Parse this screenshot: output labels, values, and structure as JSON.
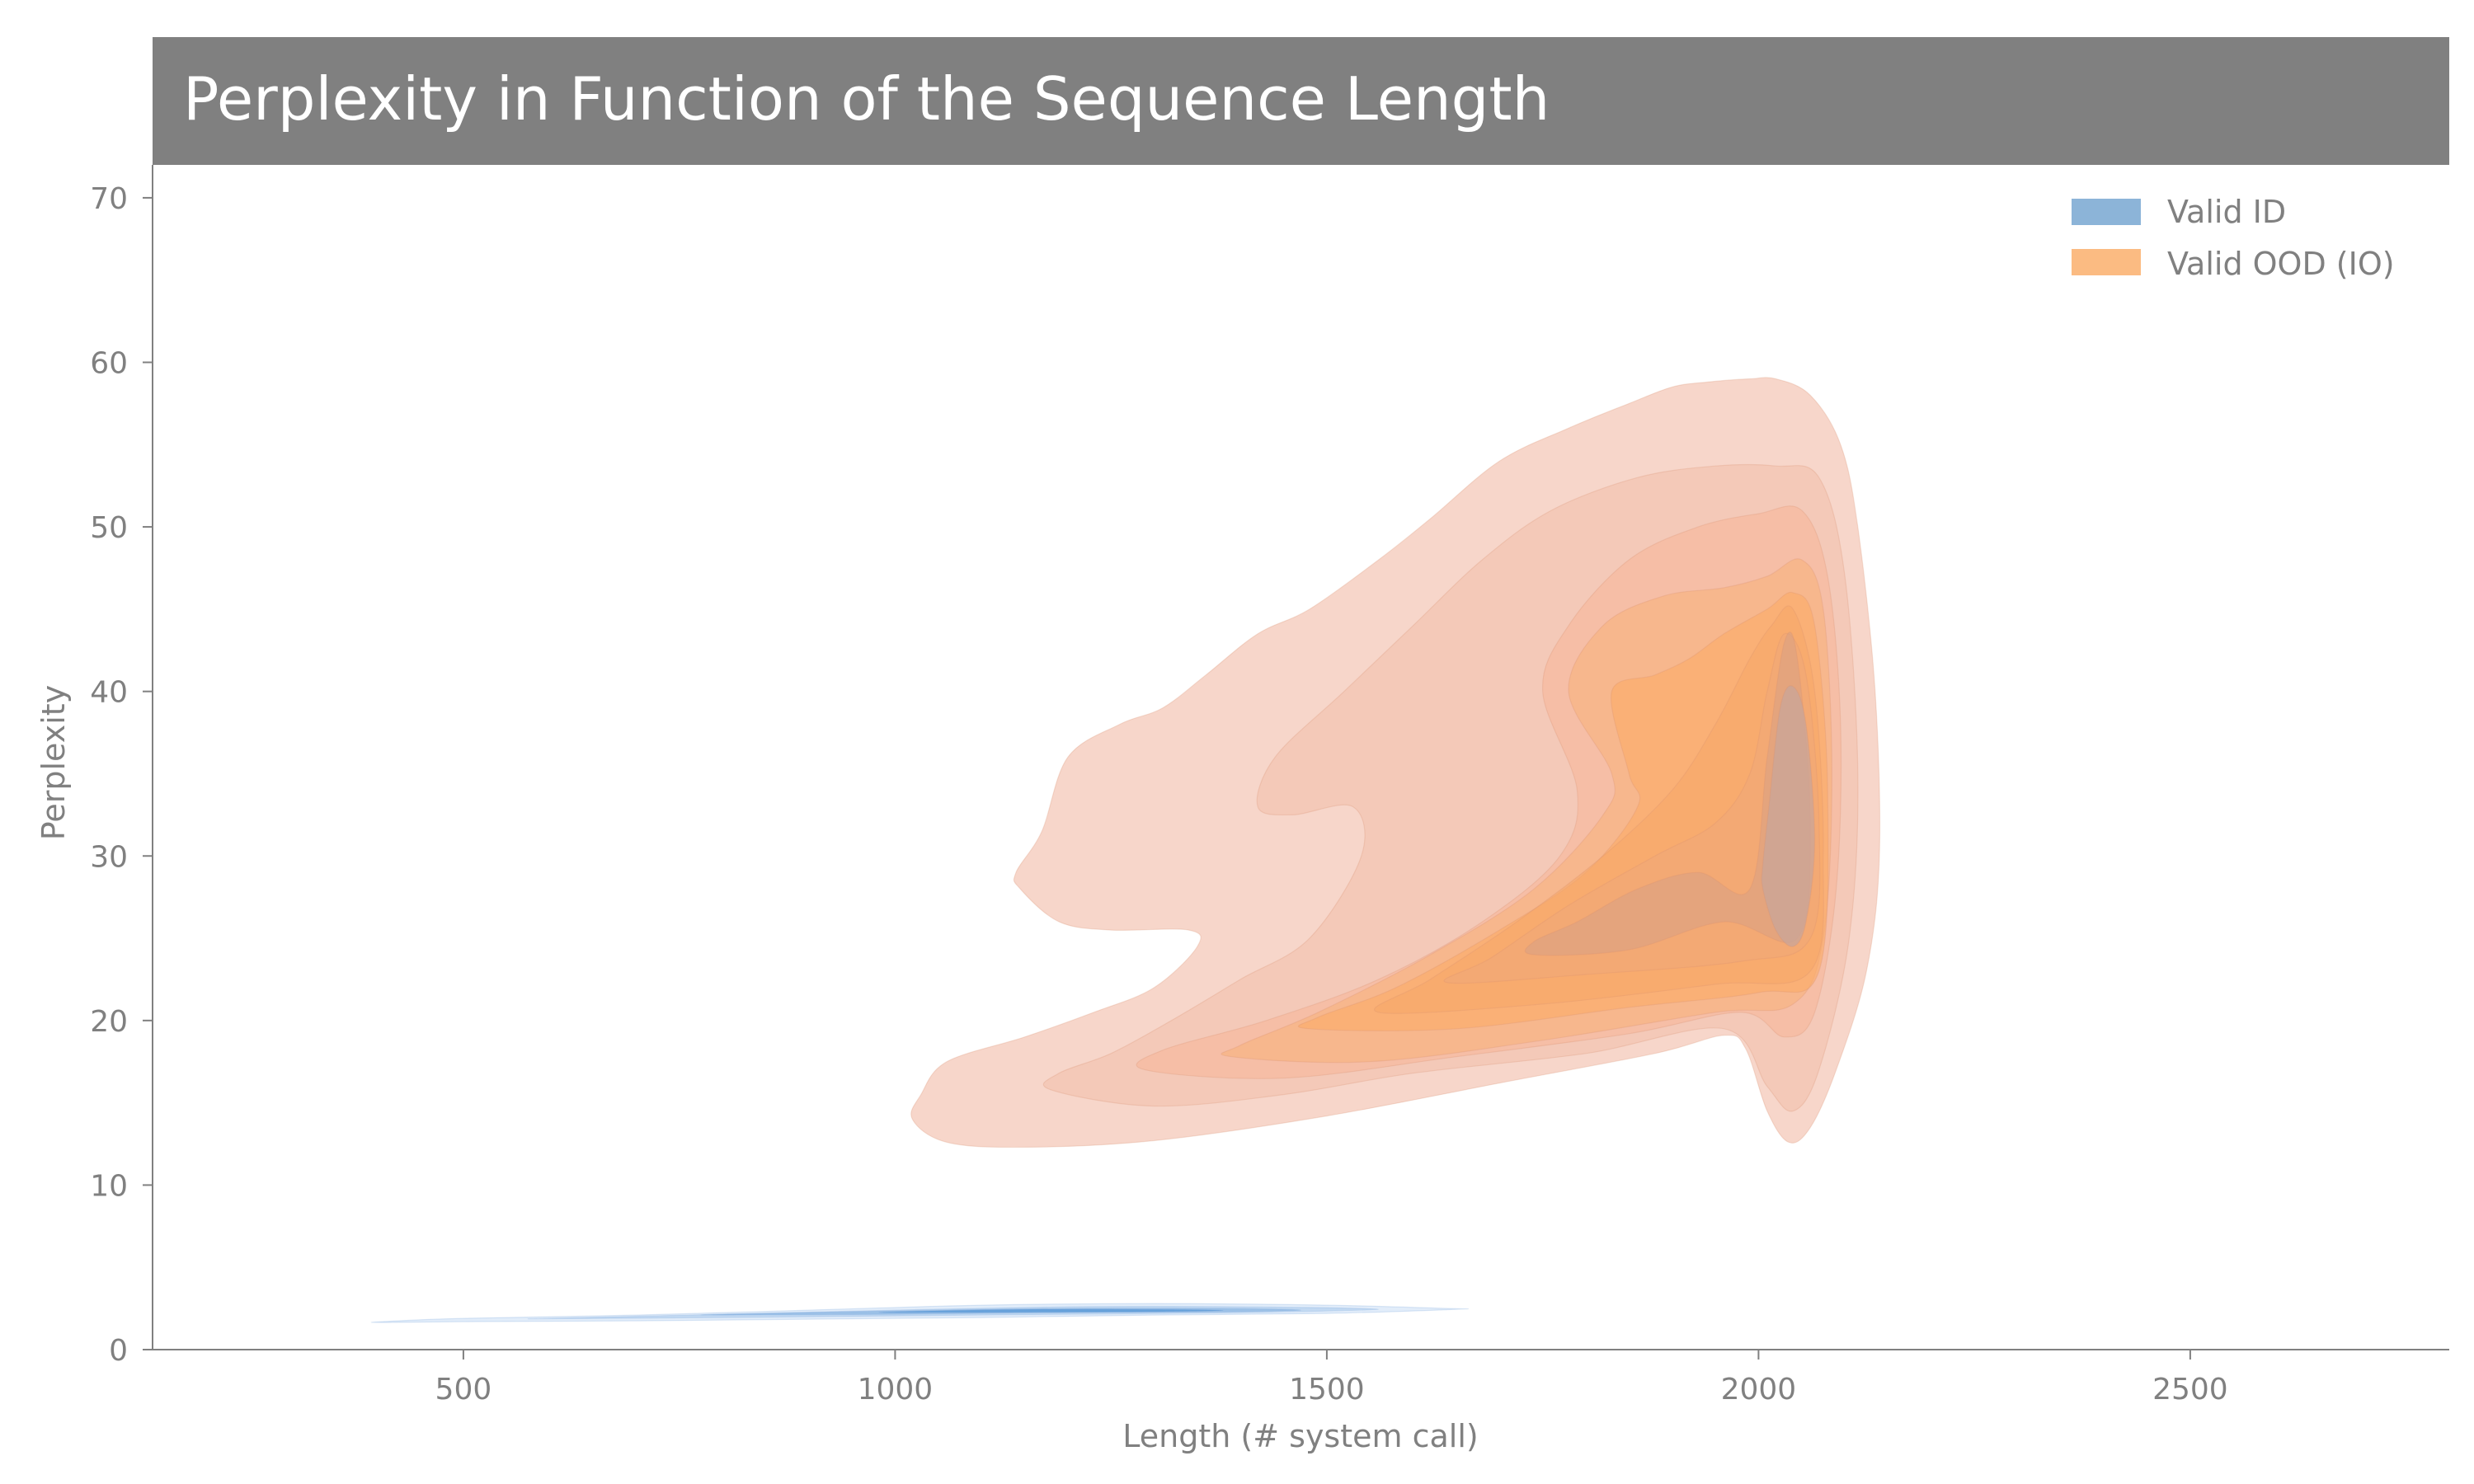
{
  "chart_data": {
    "type": "kde-contour",
    "title": "Perplexity in Function of the Sequence Length",
    "xlabel": "Length (# system call)",
    "ylabel": "Perplexity",
    "xlim": [
      140,
      2800
    ],
    "ylim": [
      0,
      72
    ],
    "xticks": [
      500,
      1000,
      1500,
      2000,
      2500
    ],
    "yticks": [
      0,
      10,
      20,
      30,
      40,
      50,
      60,
      70
    ],
    "grid": false,
    "legend_position": "top-right",
    "colors": {
      "title_band": "#808080",
      "axis": "#808080",
      "ood_outer": "#f4c4b4",
      "ood_inner": "#fbb172",
      "id_light": "#c5dcf5",
      "id_dark": "#5a9ad8",
      "legend_id": "#8cb4d8",
      "legend_ood": "#fbbb82"
    },
    "series": [
      {
        "name": "Valid ID",
        "color": "#8cb4d8",
        "levels": [
          {
            "opacity": 0.5,
            "fill": "#c5dcf5",
            "points": [
              [
                405,
                1.7
              ],
              [
                500,
                1.9
              ],
              [
                700,
                2.1
              ],
              [
                900,
                2.4
              ],
              [
                1100,
                2.7
              ],
              [
                1300,
                2.8
              ],
              [
                1500,
                2.7
              ],
              [
                1640,
                2.5
              ],
              [
                1650,
                2.45
              ],
              [
                1500,
                2.2
              ],
              [
                1300,
                2.1
              ],
              [
                1100,
                1.95
              ],
              [
                900,
                1.85
              ],
              [
                700,
                1.75
              ],
              [
                500,
                1.7
              ],
              [
                405,
                1.65
              ]
            ]
          },
          {
            "opacity": 0.6,
            "fill": "#aecbec",
            "points": [
              [
                600,
                1.9
              ],
              [
                800,
                2.15
              ],
              [
                1000,
                2.4
              ],
              [
                1200,
                2.6
              ],
              [
                1400,
                2.6
              ],
              [
                1560,
                2.45
              ],
              [
                1400,
                2.25
              ],
              [
                1200,
                2.15
              ],
              [
                1000,
                2.05
              ],
              [
                800,
                1.95
              ],
              [
                600,
                1.88
              ]
            ]
          },
          {
            "opacity": 0.7,
            "fill": "#8bb6e3",
            "points": [
              [
                800,
                2.15
              ],
              [
                1000,
                2.35
              ],
              [
                1200,
                2.5
              ],
              [
                1380,
                2.5
              ],
              [
                1470,
                2.4
              ],
              [
                1380,
                2.3
              ],
              [
                1200,
                2.25
              ],
              [
                1000,
                2.15
              ],
              [
                800,
                2.1
              ]
            ]
          },
          {
            "opacity": 0.8,
            "fill": "#5a9ad8",
            "points": [
              [
                1000,
                2.3
              ],
              [
                1150,
                2.45
              ],
              [
                1300,
                2.45
              ],
              [
                1380,
                2.38
              ],
              [
                1300,
                2.3
              ],
              [
                1150,
                2.27
              ],
              [
                1000,
                2.25
              ]
            ]
          }
        ]
      },
      {
        "name": "Valid OOD (IO)",
        "color": "#fbbb82",
        "levels": [
          {
            "opacity": 0.7,
            "fill": "#f4c4b4",
            "points": [
              [
                1020,
                14
              ],
              [
                1060,
                12.6
              ],
              [
                1150,
                12.3
              ],
              [
                1300,
                12.7
              ],
              [
                1500,
                14.2
              ],
              [
                1700,
                16.2
              ],
              [
                1880,
                18
              ],
              [
                1960,
                19.1
              ],
              [
                1985,
                18.3
              ],
              [
                2010,
                14.5
              ],
              [
                2035,
                12.6
              ],
              [
                2060,
                13.5
              ],
              [
                2090,
                17
              ],
              [
                2125,
                23
              ],
              [
                2140,
                30
              ],
              [
                2135,
                40
              ],
              [
                2115,
                50
              ],
              [
                2095,
                55
              ],
              [
                2060,
                58
              ],
              [
                2020,
                59
              ],
              [
                1990,
                59
              ],
              [
                1940,
                58.8
              ],
              [
                1900,
                58.5
              ],
              [
                1850,
                57.5
              ],
              [
                1780,
                56
              ],
              [
                1700,
                54
              ],
              [
                1620,
                50.5
              ],
              [
                1560,
                48
              ],
              [
                1480,
                45
              ],
              [
                1420,
                43.5
              ],
              [
                1360,
                41
              ],
              [
                1310,
                39
              ],
              [
                1260,
                38
              ],
              [
                1200,
                36
              ],
              [
                1170,
                31.5
              ],
              [
                1140,
                29
              ],
              [
                1145,
                28
              ],
              [
                1190,
                26
              ],
              [
                1250,
                25.5
              ],
              [
                1340,
                25.5
              ],
              [
                1350,
                24.5
              ],
              [
                1300,
                22
              ],
              [
                1230,
                20.5
              ],
              [
                1150,
                19
              ],
              [
                1060,
                17.5
              ],
              [
                1030,
                15.5
              ]
            ]
          },
          {
            "opacity": 0.55,
            "fill": "#f2bfaa",
            "points": [
              [
                1180,
                15.8
              ],
              [
                1300,
                14.8
              ],
              [
                1450,
                15.5
              ],
              [
                1600,
                16.8
              ],
              [
                1800,
                18
              ],
              [
                1960,
                19.5
              ],
              [
                2010,
                16
              ],
              [
                2040,
                14.5
              ],
              [
                2070,
                17
              ],
              [
                2105,
                25
              ],
              [
                2115,
                35
              ],
              [
                2100,
                47
              ],
              [
                2070,
                53
              ],
              [
                2020,
                53.7
              ],
              [
                1950,
                53.7
              ],
              [
                1860,
                53
              ],
              [
                1760,
                51
              ],
              [
                1680,
                48
              ],
              [
                1600,
                44
              ],
              [
                1520,
                40
              ],
              [
                1440,
                36
              ],
              [
                1420,
                33
              ],
              [
                1460,
                32.5
              ],
              [
                1530,
                33
              ],
              [
                1540,
                30
              ],
              [
                1480,
                25
              ],
              [
                1400,
                22.5
              ],
              [
                1320,
                20
              ],
              [
                1250,
                18
              ],
              [
                1190,
                16.8
              ]
            ]
          },
          {
            "opacity": 0.6,
            "fill": "#f6b89a",
            "points": [
              [
                1290,
                17
              ],
              [
                1450,
                16.5
              ],
              [
                1650,
                17.8
              ],
              [
                1850,
                19.2
              ],
              [
                1980,
                20.5
              ],
              [
                2030,
                19
              ],
              [
                2065,
                20.5
              ],
              [
                2090,
                28
              ],
              [
                2095,
                38
              ],
              [
                2080,
                47
              ],
              [
                2050,
                51
              ],
              [
                2000,
                50.8
              ],
              [
                1930,
                50
              ],
              [
                1850,
                48
              ],
              [
                1780,
                44
              ],
              [
                1750,
                40
              ],
              [
                1790,
                34
              ],
              [
                1770,
                30
              ],
              [
                1680,
                26
              ],
              [
                1560,
                22.5
              ],
              [
                1430,
                20
              ],
              [
                1310,
                18.2
              ]
            ]
          },
          {
            "opacity": 0.6,
            "fill": "#f9b27d",
            "points": [
              [
                1390,
                17.8
              ],
              [
                1550,
                17.5
              ],
              [
                1750,
                18.8
              ],
              [
                1950,
                20.5
              ],
              [
                2040,
                21
              ],
              [
                2075,
                25
              ],
              [
                2085,
                35
              ],
              [
                2075,
                45
              ],
              [
                2050,
                48
              ],
              [
                2010,
                47
              ],
              [
                1960,
                46.3
              ],
              [
                1890,
                45.8
              ],
              [
                1820,
                44
              ],
              [
                1780,
                40
              ],
              [
                1830,
                35
              ],
              [
                1820,
                32.5
              ],
              [
                1740,
                28
              ],
              [
                1620,
                24
              ],
              [
                1490,
                20.5
              ],
              [
                1400,
                18.5
              ]
            ]
          },
          {
            "opacity": 0.6,
            "fill": "#fbab68",
            "points": [
              [
                1480,
                19.5
              ],
              [
                1650,
                19.5
              ],
              [
                1850,
                20.8
              ],
              [
                2000,
                21.7
              ],
              [
                2070,
                23
              ],
              [
                2080,
                34
              ],
              [
                2065,
                44
              ],
              [
                2040,
                46
              ],
              [
                2010,
                45
              ],
              [
                1960,
                43.5
              ],
              [
                1920,
                42
              ],
              [
                1880,
                41
              ],
              [
                1830,
                40
              ],
              [
                1850,
                35
              ],
              [
                1860,
                33
              ],
              [
                1800,
                29
              ],
              [
                1700,
                25.5
              ],
              [
                1580,
                22
              ],
              [
                1490,
                20.2
              ]
            ]
          },
          {
            "opacity": 0.55,
            "fill": "#f5a868",
            "points": [
              [
                1560,
                20.5
              ],
              [
                1750,
                21
              ],
              [
                1950,
                22.2
              ],
              [
                2060,
                23
              ],
              [
                2075,
                30
              ],
              [
                2065,
                40
              ],
              [
                2040,
                45
              ],
              [
                2015,
                44
              ],
              [
                1990,
                42
              ],
              [
                1950,
                38
              ],
              [
                1900,
                34
              ],
              [
                1820,
                30
              ],
              [
                1720,
                26
              ],
              [
                1620,
                22.5
              ]
            ]
          },
          {
            "opacity": 0.55,
            "fill": "#eea77a",
            "points": [
              [
                1640,
                22.3
              ],
              [
                1800,
                22.8
              ],
              [
                1980,
                23.6
              ],
              [
                2060,
                25
              ],
              [
                2070,
                32
              ],
              [
                2055,
                41
              ],
              [
                2030,
                43.5
              ],
              [
                2010,
                40
              ],
              [
                1990,
                35
              ],
              [
                1950,
                32
              ],
              [
                1880,
                30
              ],
              [
                1780,
                27
              ],
              [
                1690,
                23.8
              ]
            ]
          },
          {
            "opacity": 0.6,
            "fill": "#dba184",
            "points": [
              [
                1740,
                24
              ],
              [
                1850,
                24.3
              ],
              [
                1960,
                26
              ],
              [
                2045,
                25
              ],
              [
                2060,
                32
              ],
              [
                2045,
                42
              ],
              [
                2030,
                43
              ],
              [
                2010,
                36
              ],
              [
                1990,
                28
              ],
              [
                1930,
                29
              ],
              [
                1860,
                28
              ],
              [
                1790,
                26
              ],
              [
                1740,
                24.8
              ]
            ]
          },
          {
            "opacity": 0.75,
            "fill": "#c9a59a",
            "points": [
              [
                2005,
                28
              ],
              [
                2020,
                25.5
              ],
              [
                2040,
                24.5
              ],
              [
                2055,
                26
              ],
              [
                2065,
                31
              ],
              [
                2055,
                38
              ],
              [
                2040,
                40.3
              ],
              [
                2025,
                39
              ],
              [
                2012,
                33
              ],
              [
                2005,
                29.5
              ]
            ]
          }
        ]
      }
    ]
  }
}
